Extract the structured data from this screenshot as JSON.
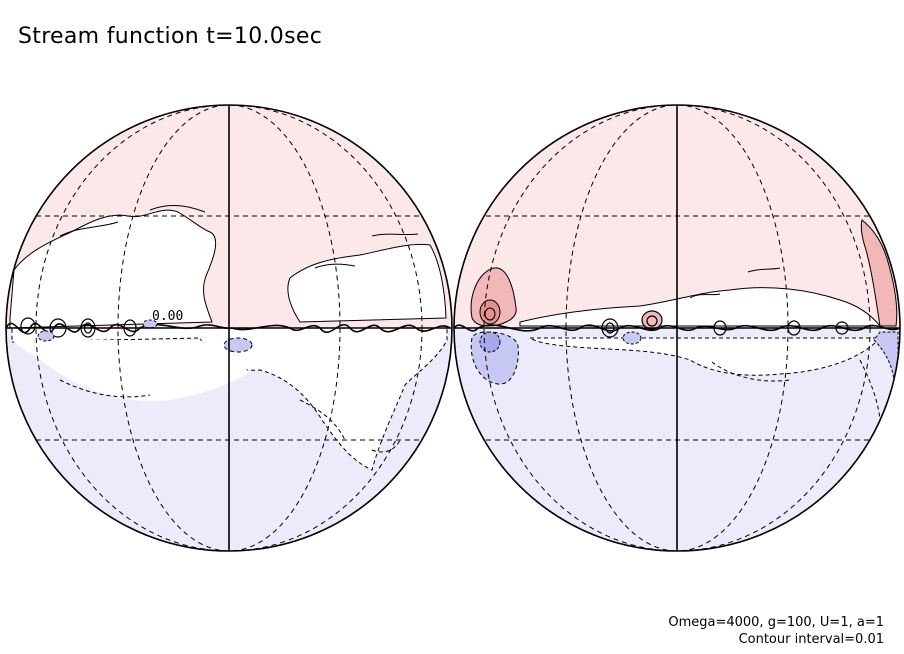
{
  "title": "Stream function t=10.0sec",
  "contour_label": "0.00",
  "footer": {
    "params": "Omega=4000, g=100, U=1, a=1",
    "interval": "Contour interval=0.01"
  },
  "colors": {
    "positive": "#fce8e8",
    "negative": "#ebebfc",
    "zero": "#ffffff",
    "positive_strong": "#f2b8b8",
    "negative_strong": "#c8c8f4",
    "line": "#000000"
  }
}
